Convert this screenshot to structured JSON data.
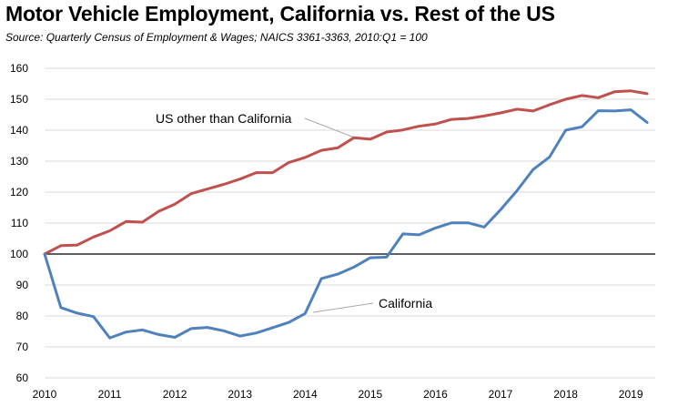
{
  "chart_data": {
    "type": "line",
    "title": "Motor Vehicle Employment, California vs. Rest of the US",
    "subtitle": "Source:  Quarterly Census of Employment & Wages; NAICS 3361-3363, 2010:Q1 = 100",
    "ylim": [
      60,
      160
    ],
    "yticks": [
      60,
      70,
      80,
      90,
      100,
      110,
      120,
      130,
      140,
      150,
      160
    ],
    "xticks": [
      "2010",
      "2011",
      "2012",
      "2013",
      "2014",
      "2015",
      "2016",
      "2017",
      "2018",
      "2019"
    ],
    "grid": "horizontal",
    "x_start_year": 2010,
    "series": [
      {
        "name": "US other than California",
        "color": "#C0504D",
        "values": [
          100,
          102.7,
          102.9,
          105.5,
          107.5,
          110.5,
          110.3,
          113.8,
          116.1,
          119.5,
          121,
          122.5,
          124.2,
          126.3,
          126.3,
          129.6,
          131.2,
          133.5,
          134.3,
          137.6,
          137.1,
          139.4,
          140.1,
          141.3,
          142,
          143.5,
          143.8,
          144.6,
          145.6,
          146.8,
          146.2,
          148.2,
          150,
          151.2,
          150.5,
          152.4,
          152.7,
          151.8
        ]
      },
      {
        "name": "California",
        "color": "#4F81BD",
        "values": [
          100,
          82.7,
          80.9,
          79.8,
          72.9,
          74.8,
          75.5,
          74,
          73.1,
          75.9,
          76.3,
          75.2,
          73.5,
          74.5,
          76.2,
          77.9,
          80.8,
          92.1,
          93.5,
          95.8,
          98.8,
          99,
          106.5,
          106.2,
          108.4,
          110.1,
          110.1,
          108.7,
          114.3,
          120.4,
          127.3,
          131.3,
          140,
          141.1,
          146.3,
          146.2,
          146.6,
          142.5
        ]
      }
    ]
  }
}
